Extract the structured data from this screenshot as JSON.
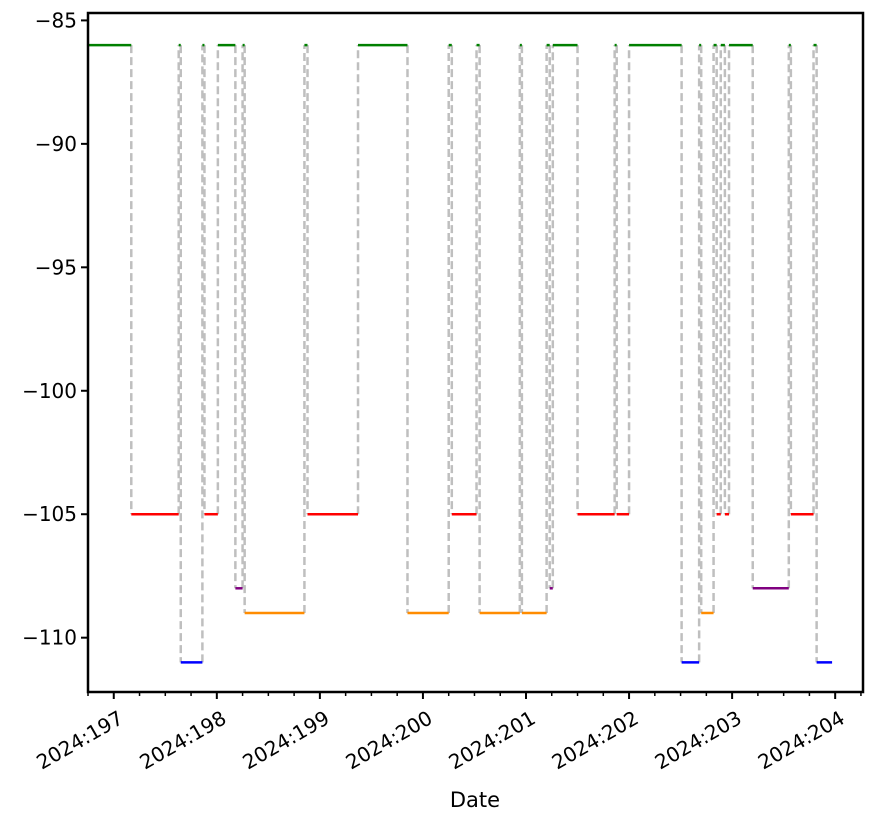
{
  "chart_data": {
    "type": "line",
    "title": "",
    "xlabel": "Date",
    "ylabel": "",
    "xlim": [
      196.75,
      204.27
    ],
    "ylim": [
      -112.2,
      -84.7
    ],
    "x_ticks": [
      {
        "value": 197,
        "label": "2024:197"
      },
      {
        "value": 198,
        "label": "2024:198"
      },
      {
        "value": 199,
        "label": "2024:199"
      },
      {
        "value": 200,
        "label": "2024:200"
      },
      {
        "value": 201,
        "label": "2024:201"
      },
      {
        "value": 202,
        "label": "2024:202"
      },
      {
        "value": 203,
        "label": "2024:203"
      },
      {
        "value": 204,
        "label": "2024:204"
      }
    ],
    "y_ticks": [
      {
        "value": -85,
        "label": "−85"
      },
      {
        "value": -90,
        "label": "−90"
      },
      {
        "value": -95,
        "label": "−95"
      },
      {
        "value": -100,
        "label": "−100"
      },
      {
        "value": -105,
        "label": "−105"
      },
      {
        "value": -110,
        "label": "−110"
      }
    ],
    "grid": false,
    "colors": {
      "-86": "#008000",
      "-105": "#ff0000",
      "-108": "#800080",
      "-109": "#ff8c00",
      "-111": "#0000ff",
      "transition": "#bfbfbf"
    },
    "segments": [
      {
        "x0": 196.74,
        "x1": 197.17,
        "y": -86
      },
      {
        "x0": 197.17,
        "x1": 197.63,
        "y": -105
      },
      {
        "x0": 197.63,
        "x1": 197.65,
        "y": -86
      },
      {
        "x0": 197.65,
        "x1": 197.86,
        "y": -111
      },
      {
        "x0": 197.86,
        "x1": 197.88,
        "y": -86
      },
      {
        "x0": 197.88,
        "x1": 198.01,
        "y": -105
      },
      {
        "x0": 198.01,
        "x1": 198.18,
        "y": -86
      },
      {
        "x0": 198.18,
        "x1": 198.25,
        "y": -108
      },
      {
        "x0": 198.25,
        "x1": 198.27,
        "y": -86
      },
      {
        "x0": 198.27,
        "x1": 198.85,
        "y": -109
      },
      {
        "x0": 198.85,
        "x1": 198.88,
        "y": -86
      },
      {
        "x0": 198.88,
        "x1": 199.37,
        "y": -105
      },
      {
        "x0": 199.37,
        "x1": 199.85,
        "y": -86
      },
      {
        "x0": 199.85,
        "x1": 200.25,
        "y": -109
      },
      {
        "x0": 200.25,
        "x1": 200.28,
        "y": -86
      },
      {
        "x0": 200.28,
        "x1": 200.52,
        "y": -105
      },
      {
        "x0": 200.52,
        "x1": 200.55,
        "y": -86
      },
      {
        "x0": 200.55,
        "x1": 200.94,
        "y": -109
      },
      {
        "x0": 200.94,
        "x1": 200.96,
        "y": -86
      },
      {
        "x0": 200.96,
        "x1": 201.2,
        "y": -109
      },
      {
        "x0": 201.2,
        "x1": 201.23,
        "y": -86
      },
      {
        "x0": 201.23,
        "x1": 201.26,
        "y": -108
      },
      {
        "x0": 201.26,
        "x1": 201.5,
        "y": -86
      },
      {
        "x0": 201.5,
        "x1": 201.86,
        "y": -105
      },
      {
        "x0": 201.86,
        "x1": 201.88,
        "y": -86
      },
      {
        "x0": 201.88,
        "x1": 202.0,
        "y": -105
      },
      {
        "x0": 202.0,
        "x1": 202.51,
        "y": -86
      },
      {
        "x0": 202.51,
        "x1": 202.68,
        "y": -111
      },
      {
        "x0": 202.68,
        "x1": 202.7,
        "y": -86
      },
      {
        "x0": 202.7,
        "x1": 202.82,
        "y": -109
      },
      {
        "x0": 202.82,
        "x1": 202.85,
        "y": -86
      },
      {
        "x0": 202.85,
        "x1": 202.89,
        "y": -105
      },
      {
        "x0": 202.89,
        "x1": 202.93,
        "y": -86
      },
      {
        "x0": 202.93,
        "x1": 202.97,
        "y": -105
      },
      {
        "x0": 202.97,
        "x1": 203.2,
        "y": -86
      },
      {
        "x0": 203.2,
        "x1": 203.55,
        "y": -108
      },
      {
        "x0": 203.55,
        "x1": 203.57,
        "y": -86
      },
      {
        "x0": 203.57,
        "x1": 203.79,
        "y": -105
      },
      {
        "x0": 203.79,
        "x1": 203.82,
        "y": -86
      },
      {
        "x0": 203.82,
        "x1": 203.97,
        "y": -111
      }
    ]
  }
}
